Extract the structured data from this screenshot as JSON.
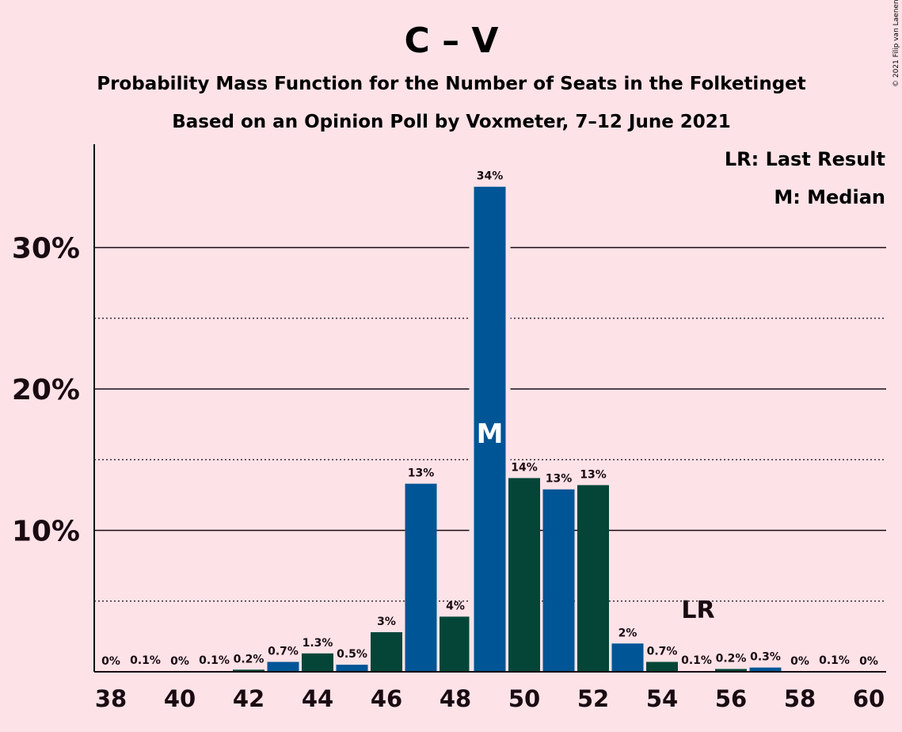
{
  "title": "C – V",
  "subtitle1": "Probability Mass Function for the Number of Seats in the Folketinget",
  "subtitle2": "Based on an Opinion Poll by Voxmeter, 7–12 June 2021",
  "legend": {
    "lr": "LR: Last Result",
    "m": "M: Median"
  },
  "copyright": "© 2021 Filip van Laenen",
  "colors": {
    "background": "#fde3e8",
    "bar_blue": "#005596",
    "bar_green": "#044538",
    "text": "#1a0a12"
  },
  "chart_data": {
    "type": "bar",
    "title": "C – V",
    "xlabel": "",
    "ylabel": "",
    "categories": [
      38,
      39,
      40,
      41,
      42,
      43,
      44,
      45,
      46,
      47,
      48,
      49,
      50,
      51,
      52,
      53,
      54,
      55,
      56,
      57,
      58,
      59,
      60
    ],
    "values": [
      0,
      0.05,
      0,
      0.05,
      0.15,
      0.7,
      1.3,
      0.5,
      2.8,
      13.3,
      3.9,
      34.3,
      13.7,
      12.9,
      13.2,
      2.0,
      0.7,
      0.05,
      0.2,
      0.3,
      0,
      0.05,
      0
    ],
    "value_labels": [
      "0%",
      "0.1%",
      "0%",
      "0.1%",
      "0.2%",
      "0.7%",
      "1.3%",
      "0.5%",
      "3%",
      "13%",
      "4%",
      "34%",
      "14%",
      "13%",
      "13%",
      "2%",
      "0.7%",
      "0.1%",
      "0.2%",
      "0.3%",
      "0%",
      "0.1%",
      "0%"
    ],
    "x_tick_labels": [
      "38",
      "40",
      "42",
      "44",
      "46",
      "48",
      "50",
      "52",
      "54",
      "56",
      "58",
      "60"
    ],
    "y_ticks": [
      10,
      20,
      30
    ],
    "y_tick_labels": [
      "10%",
      "20%",
      "30%"
    ],
    "y_minor_ticks": [
      5,
      15,
      25
    ],
    "ylim": [
      0,
      37
    ],
    "median": 49,
    "median_label": "M",
    "last_result": 55,
    "last_result_label": "LR",
    "bar_color_pattern": "alternating blue/green by seat",
    "legend_position": "top-right",
    "grid": true
  }
}
